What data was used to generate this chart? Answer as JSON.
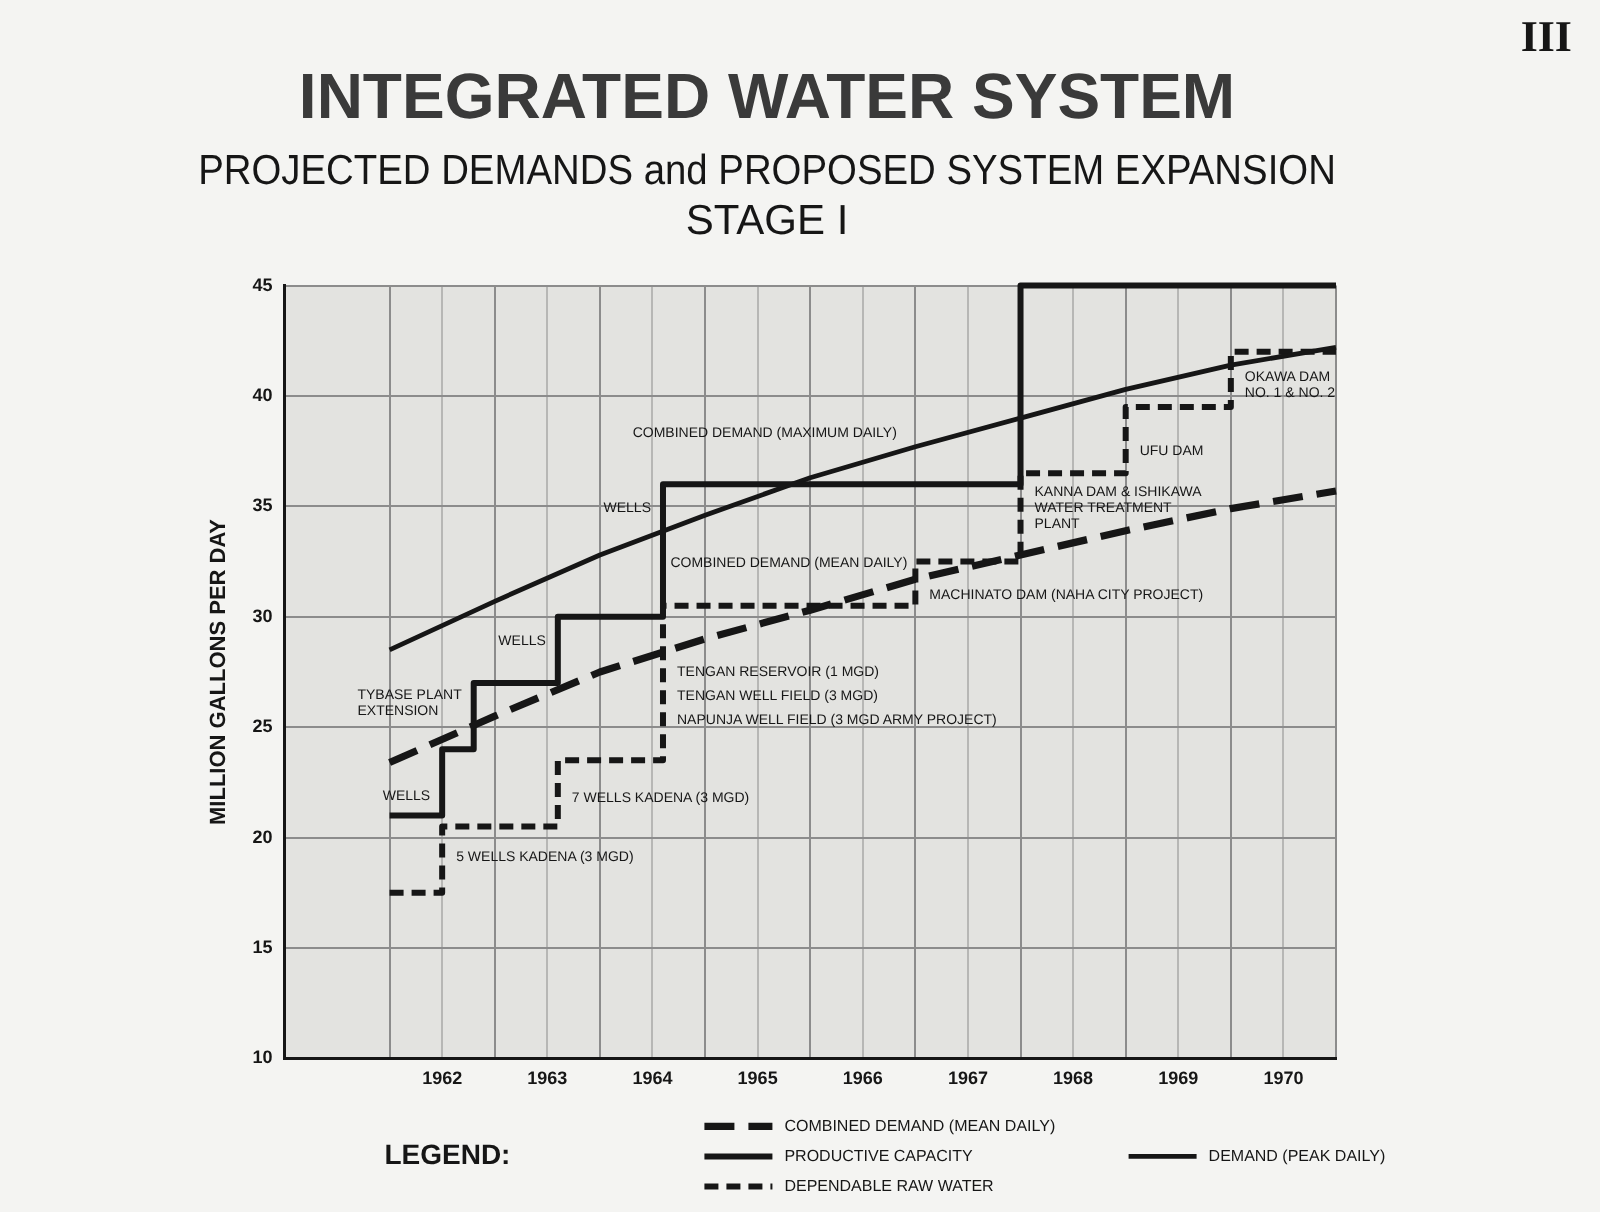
{
  "chart_data": {
    "type": "line",
    "title": "INTEGRATED WATER SYSTEM",
    "subtitle": "PROJECTED DEMANDS and PROPOSED SYSTEM EXPANSION\nSTAGE I",
    "ylabel": "MILLION GALLONS PER DAY",
    "legend_title": "LEGEND:",
    "legend": "bottom",
    "grid": true,
    "marker": "none",
    "xlim": [
      1961,
      1971
    ],
    "xticks": [
      {
        "value": 1961,
        "label": null
      },
      {
        "value": 1962,
        "label": null
      },
      {
        "value": 1962.5,
        "label": "1962"
      },
      {
        "value": 1963,
        "label": null
      },
      {
        "value": 1963.5,
        "label": "1963"
      },
      {
        "value": 1964,
        "label": null
      },
      {
        "value": 1964.5,
        "label": "1964"
      },
      {
        "value": 1965,
        "label": null
      },
      {
        "value": 1965.5,
        "label": "1965"
      },
      {
        "value": 1966,
        "label": null
      },
      {
        "value": 1966.5,
        "label": "1966"
      },
      {
        "value": 1967,
        "label": null
      },
      {
        "value": 1967.5,
        "label": "1967"
      },
      {
        "value": 1968,
        "label": null
      },
      {
        "value": 1968.5,
        "label": "1968"
      },
      {
        "value": 1969,
        "label": null
      },
      {
        "value": 1969.5,
        "label": "1969"
      },
      {
        "value": 1970,
        "label": null
      },
      {
        "value": 1970.5,
        "label": "1970"
      },
      {
        "value": 1971,
        "label": null
      }
    ],
    "ylim": [
      10,
      45
    ],
    "yticks": [
      10,
      15,
      20,
      25,
      30,
      35,
      40,
      45
    ],
    "series": [
      {
        "name": "COMBINED DEMAND (MEAN DAILY)",
        "type": "line",
        "line_style": "dashed",
        "color": "#161616",
        "x": [
          1962,
          1963,
          1964,
          1965,
          1966,
          1967,
          1968,
          1969,
          1970,
          1971
        ],
        "values": [
          23.4,
          25.5,
          27.5,
          29.0,
          30.3,
          31.7,
          32.8,
          33.9,
          34.9,
          35.7
        ]
      },
      {
        "name": "PRODUCTIVE CAPACITY",
        "type": "step",
        "line_style": "solid",
        "color": "#161616",
        "x": [
          1962,
          1962.5,
          1962.8,
          1963.6,
          1964.6,
          1968,
          1971
        ],
        "values": [
          21,
          24,
          27,
          30,
          36,
          45,
          45
        ]
      },
      {
        "name": "DEMAND (PEAK DAILY)",
        "type": "line",
        "line_style": "solid",
        "color": "#161616",
        "x": [
          1962,
          1963,
          1964,
          1965,
          1966,
          1967,
          1968,
          1969,
          1970,
          1971
        ],
        "values": [
          28.5,
          30.7,
          32.8,
          34.6,
          36.3,
          37.7,
          39.0,
          40.3,
          41.4,
          42.2
        ]
      },
      {
        "name": "DEPENDABLE RAW WATER",
        "type": "step",
        "line_style": "dashed",
        "color": "#161616",
        "x": [
          1962,
          1962.5,
          1963.6,
          1964.6,
          1967,
          1968,
          1969,
          1970,
          1971
        ],
        "values": [
          17.5,
          20.5,
          23.5,
          30.5,
          32.5,
          36.5,
          39.5,
          42,
          42
        ]
      }
    ],
    "annotations": [
      "III",
      {
        "text": "COMBINED DEMAND (MAXIMUM DAILY)",
        "x": 1966.9,
        "y": 37.6
      },
      {
        "text": "WELLS",
        "x": 1964.6,
        "y": 34.9
      },
      {
        "text": "COMBINED DEMAND (MEAN DAILY)",
        "x": 1967.0,
        "y": 31.7
      },
      {
        "text": "WELLS",
        "x": 1963.6,
        "y": 28.9
      },
      {
        "text": "TYBASE PLANT\nEXTENSION",
        "x": 1962.8,
        "y": 26.1
      },
      {
        "text": "WELLS",
        "x": 1962.5,
        "y": 21.9
      },
      {
        "text": "TENGAN RESERVOIR (1 MGD)",
        "x": 1964.6,
        "y": 27.5
      },
      {
        "text": "TENGAN WELL FIELD (3 MGD)",
        "x": 1964.6,
        "y": 26.4
      },
      {
        "text": "NAPUNJA WELL FIELD (3 MGD ARMY PROJECT)",
        "x": 1964.6,
        "y": 25.3
      },
      {
        "text": "7 WELLS KADENA (3 MGD)",
        "x": 1963.6,
        "y": 21.8
      },
      {
        "text": "5 WELLS KADENA (3 MGD)",
        "x": 1962.5,
        "y": 19.1
      },
      {
        "text": "MACHINATO DAM (NAHA CITY PROJECT)",
        "x": 1967.0,
        "y": 31.0
      },
      {
        "text": "KANNA DAM & ISHIKAWA\nWATER TREATMENT\nPLANT",
        "x": 1968.0,
        "y": 34.9
      },
      {
        "text": "UFU DAM",
        "x": 1969.0,
        "y": 37.5
      },
      {
        "text": "OKAWA DAM\nNO. 1 & NO. 2",
        "x": 1970.0,
        "y": 40.5
      }
    ]
  }
}
